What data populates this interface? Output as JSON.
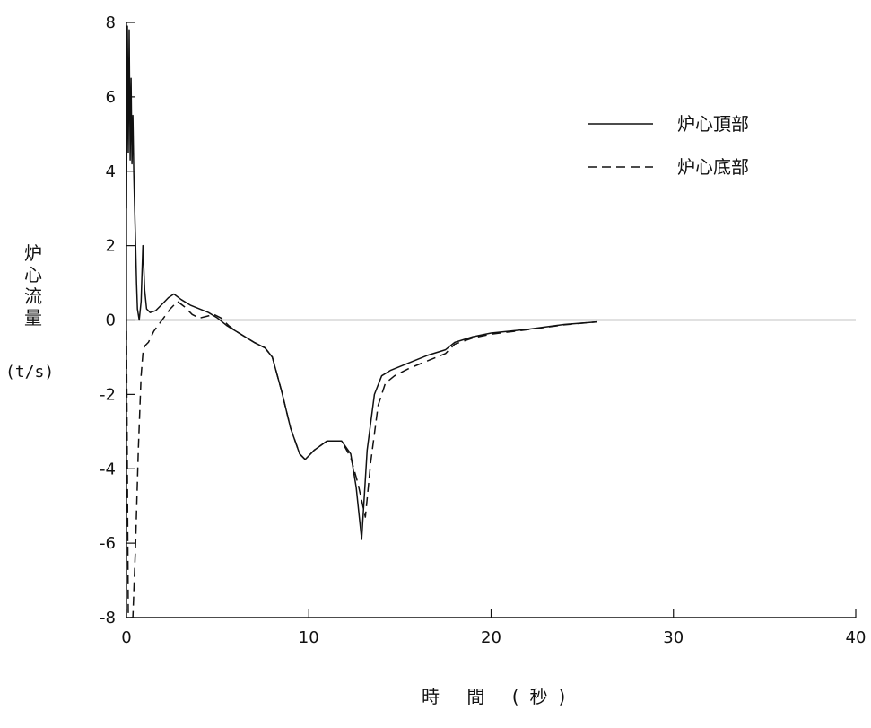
{
  "chart_data": {
    "type": "line",
    "xlabel": "時 間 (秒)",
    "ylabel": "炉心流量",
    "yunit": "(t/s)",
    "xlim": [
      0,
      40
    ],
    "ylim": [
      -8,
      8
    ],
    "xticks": [
      0,
      10,
      20,
      30,
      40
    ],
    "yticks": [
      8,
      6,
      4,
      2,
      0,
      -2,
      -4,
      -6,
      -8
    ],
    "grid": false,
    "zero_line": true,
    "legend_position": "top-right",
    "series": [
      {
        "name": "炉心頂部",
        "style": "solid",
        "color": "#111111",
        "x": [
          0,
          0.05,
          0.1,
          0.15,
          0.2,
          0.25,
          0.3,
          0.35,
          0.4,
          0.45,
          0.5,
          0.55,
          0.6,
          0.7,
          0.8,
          0.9,
          1.0,
          1.1,
          1.3,
          1.6,
          2.0,
          2.3,
          2.6,
          3.0,
          3.5,
          4.0,
          4.5,
          5.0,
          5.5,
          6.0,
          7.0,
          7.6,
          8.0,
          8.5,
          9.0,
          9.5,
          9.8,
          10.3,
          11.0,
          11.8,
          12.3,
          12.6,
          12.9,
          13.2,
          13.6,
          14.0,
          14.5,
          15.5,
          16.5,
          17.5,
          18.0,
          19.0,
          20.0,
          22.0,
          24.0,
          25.8
        ],
        "y": [
          3.0,
          7.9,
          4.5,
          7.8,
          4.3,
          6.5,
          4.2,
          5.5,
          4.0,
          3.0,
          2.0,
          1.0,
          0.3,
          0.0,
          0.5,
          2.0,
          0.8,
          0.3,
          0.2,
          0.25,
          0.45,
          0.6,
          0.7,
          0.55,
          0.4,
          0.3,
          0.2,
          0.05,
          -0.15,
          -0.3,
          -0.6,
          -0.75,
          -1.0,
          -1.9,
          -2.9,
          -3.6,
          -3.75,
          -3.5,
          -3.25,
          -3.25,
          -3.6,
          -4.5,
          -5.9,
          -3.5,
          -2.0,
          -1.5,
          -1.35,
          -1.15,
          -0.95,
          -0.8,
          -0.6,
          -0.45,
          -0.35,
          -0.25,
          -0.12,
          -0.05
        ]
      },
      {
        "name": "炉心底部",
        "style": "dashed",
        "color": "#111111",
        "x": [
          0,
          0.1,
          0.2,
          0.35,
          0.5,
          0.65,
          0.8,
          0.9,
          1.0,
          1.2,
          1.5,
          1.8,
          2.1,
          2.4,
          2.8,
          3.2,
          3.6,
          4.0,
          4.4,
          4.8,
          5.2,
          5.6,
          6.0,
          7.0,
          7.6,
          8.0,
          8.5,
          9.0,
          9.5,
          9.8,
          10.3,
          11.0,
          11.8,
          12.3,
          12.7,
          13.1,
          13.4,
          13.8,
          14.2,
          14.7,
          15.5,
          16.5,
          17.5,
          18.0,
          19.0,
          20.0,
          22.0,
          24.0,
          25.8
        ],
        "y": [
          -0.3,
          -7.9,
          -8.0,
          -8.0,
          -6.0,
          -3.5,
          -1.5,
          -0.9,
          -0.7,
          -0.6,
          -0.3,
          -0.1,
          0.1,
          0.3,
          0.5,
          0.35,
          0.15,
          0.05,
          0.1,
          0.15,
          0.05,
          -0.15,
          -0.3,
          -0.6,
          -0.75,
          -1.0,
          -1.9,
          -2.9,
          -3.6,
          -3.75,
          -3.5,
          -3.25,
          -3.25,
          -3.7,
          -4.4,
          -5.3,
          -3.8,
          -2.3,
          -1.7,
          -1.5,
          -1.3,
          -1.1,
          -0.9,
          -0.65,
          -0.48,
          -0.38,
          -0.26,
          -0.13,
          -0.05
        ]
      }
    ]
  }
}
